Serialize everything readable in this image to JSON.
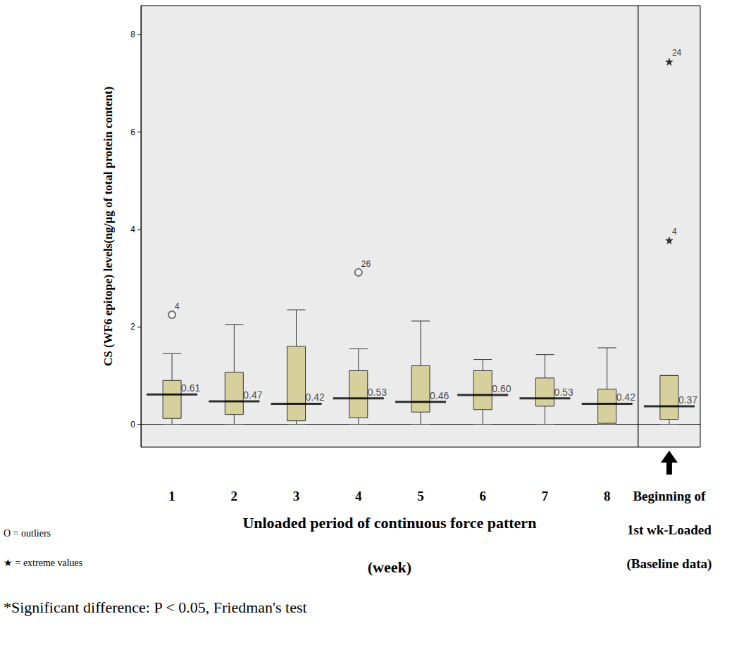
{
  "chart_data": {
    "type": "boxplot",
    "y_label": "CS (WF6 epitope) levels(ng/µg of total protein content)",
    "x_label": "Unloaded period of continuous force pattern",
    "x_label_unit": "(week)",
    "categories": [
      "1",
      "2",
      "3",
      "4",
      "5",
      "6",
      "7",
      "8",
      "Beginning of 1st wk-Loaded (Baseline data)"
    ],
    "boxes": [
      [
        0,
        0.12,
        0.61,
        0.9,
        1.45
      ],
      [
        0,
        0.2,
        0.47,
        1.07,
        2.05
      ],
      [
        0,
        0.07,
        0.42,
        1.6,
        2.35
      ],
      [
        0,
        0.13,
        0.53,
        1.1,
        1.55
      ],
      [
        0,
        0.25,
        0.46,
        1.2,
        2.12
      ],
      [
        0,
        0.3,
        0.6,
        1.1,
        1.33
      ],
      [
        0,
        0.37,
        0.53,
        0.95,
        1.43
      ],
      [
        0,
        0.02,
        0.42,
        0.72,
        1.57
      ],
      [
        0,
        0.1,
        0.37,
        1.0,
        1.0
      ]
    ],
    "value_labels": [
      "0.61",
      "0.47",
      "0.42",
      "0.53",
      "0.46",
      "0.60",
      "0.53",
      "0.42",
      "0.37"
    ],
    "outliers": [
      {
        "category": "1",
        "value": 2.25,
        "label": "4"
      },
      {
        "category": "4",
        "value": 3.12,
        "label": "26"
      }
    ],
    "extremes": [
      {
        "category": "Beginning of 1st wk-Loaded (Baseline data)",
        "value": 7.45,
        "label": "24"
      },
      {
        "category": "Beginning of 1st wk-Loaded (Baseline data)",
        "value": 3.78,
        "label": "4"
      }
    ],
    "notes": [
      "O = outliers",
      "★ = extreme values"
    ],
    "footnote": "*Significant difference: P < 0.05, Friedman's test",
    "color": "#d6d09d",
    "ylim": [
      -0.47,
      8.6
    ],
    "yticks": [
      0,
      2,
      4,
      6,
      8
    ],
    "grid": false,
    "data_labels": true
  }
}
